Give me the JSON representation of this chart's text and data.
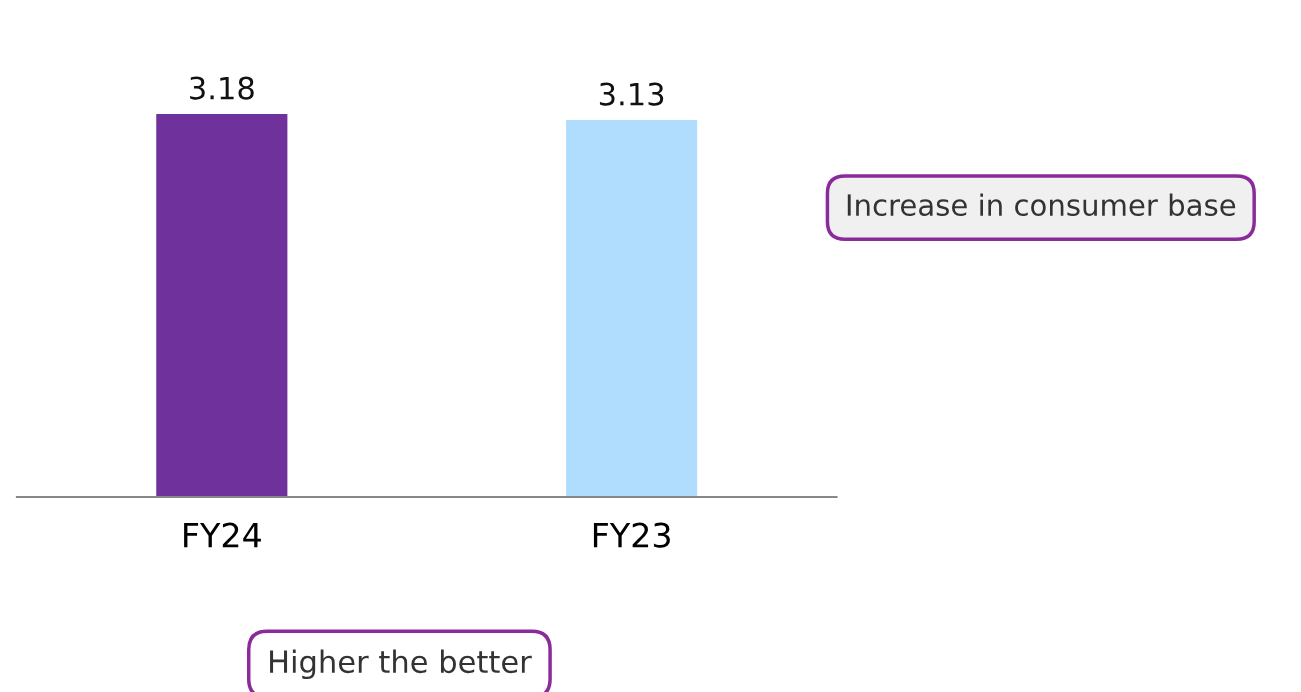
{
  "chart_data": {
    "type": "bar",
    "categories": [
      "FY24",
      "FY23"
    ],
    "values": [
      3.18,
      3.13
    ],
    "colors": [
      "#6f319b",
      "#b0ddfd"
    ],
    "data_labels": true,
    "tick_labels": "x",
    "annotations": [
      "Increase in consumer base",
      "Higher the better"
    ]
  }
}
